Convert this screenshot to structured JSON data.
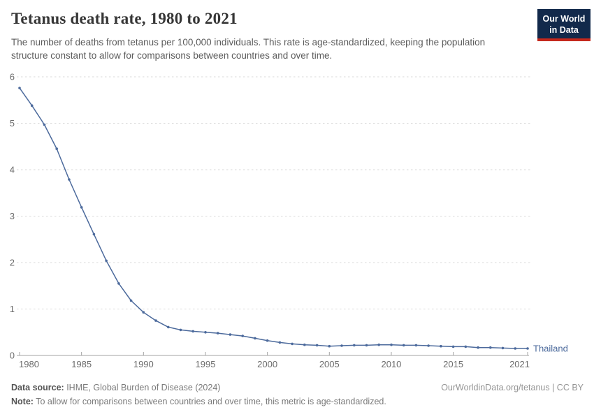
{
  "header": {
    "title": "Tetanus death rate, 1980 to 2021",
    "subtitle": "The number of deaths from tetanus per 100,000 individuals. This rate is age-standardized, keeping the population structure constant to allow for comparisons between countries and over time.",
    "logo": {
      "line1": "Our World",
      "line2": "in Data",
      "bg_color": "#12294b",
      "bar_color": "#c5281c"
    }
  },
  "chart_data": {
    "type": "line",
    "title": "Tetanus death rate, 1980 to 2021",
    "xlabel": "",
    "ylabel": "",
    "xlim": [
      1980,
      2021
    ],
    "ylim": [
      0,
      6
    ],
    "xticks": [
      1980,
      1985,
      1990,
      1995,
      2000,
      2005,
      2010,
      2015,
      2021
    ],
    "yticks": [
      0,
      1,
      2,
      3,
      4,
      5,
      6
    ],
    "grid": "horizontal-dashed",
    "legend_position": "end-of-line-label",
    "series": [
      {
        "name": "Thailand",
        "color": "#4c6a9c",
        "x": [
          1980,
          1981,
          1982,
          1983,
          1984,
          1985,
          1986,
          1987,
          1988,
          1989,
          1990,
          1991,
          1992,
          1993,
          1994,
          1995,
          1996,
          1997,
          1998,
          1999,
          2000,
          2001,
          2002,
          2003,
          2004,
          2005,
          2006,
          2007,
          2008,
          2009,
          2010,
          2011,
          2012,
          2013,
          2014,
          2015,
          2016,
          2017,
          2018,
          2019,
          2020,
          2021
        ],
        "values": [
          5.76,
          5.38,
          4.97,
          4.45,
          3.79,
          3.19,
          2.61,
          2.04,
          1.55,
          1.18,
          0.93,
          0.75,
          0.61,
          0.55,
          0.52,
          0.5,
          0.48,
          0.45,
          0.42,
          0.37,
          0.32,
          0.28,
          0.25,
          0.23,
          0.22,
          0.2,
          0.21,
          0.22,
          0.22,
          0.23,
          0.23,
          0.22,
          0.22,
          0.21,
          0.2,
          0.19,
          0.19,
          0.17,
          0.17,
          0.16,
          0.15,
          0.15
        ]
      }
    ],
    "style": {
      "grid_color": "#d9d9d9",
      "axis_color": "#a3a3a3",
      "tick_label_color": "#6b6b6b"
    }
  },
  "footer": {
    "source_label": "Data source:",
    "source_text": " IHME, Global Burden of Disease (2024)",
    "link": "OurWorldinData.org/tetanus | CC BY",
    "note_label": "Note:",
    "note_text": " To allow for comparisons between countries and over time, this metric is age-standardized."
  }
}
